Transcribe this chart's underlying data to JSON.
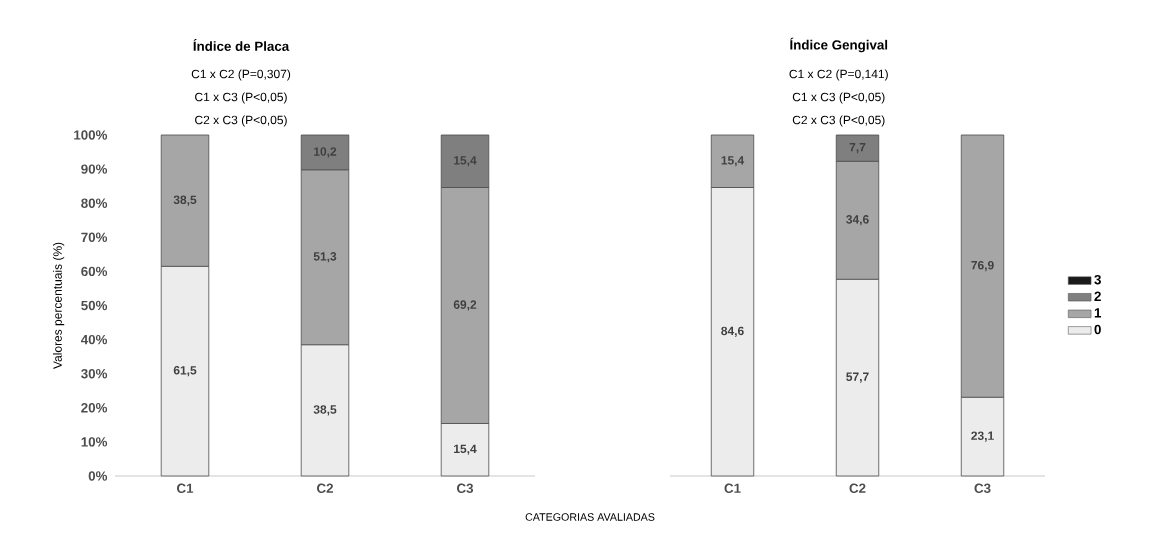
{
  "chart_data": [
    {
      "type": "bar",
      "stacked": true,
      "title": "Índice de Placa",
      "annotations": [
        "C1 x C2 (P=0,307)",
        "C1 x C3 (P<0,05)",
        "C2 x C3 (P<0,05)"
      ],
      "ylabel": "Valores percentuais (%)",
      "xlabel": "CATEGORIAS AVALIADAS",
      "categories": [
        "C1",
        "C2",
        "C3"
      ],
      "ylim": [
        0,
        100
      ],
      "yticks": [
        {
          "value": 0,
          "label": "0%"
        },
        {
          "value": 10,
          "label": "10%"
        },
        {
          "value": 20,
          "label": "20%"
        },
        {
          "value": 30,
          "label": "30%"
        },
        {
          "value": 40,
          "label": "40%"
        },
        {
          "value": 50,
          "label": "50%"
        },
        {
          "value": 60,
          "label": "60%"
        },
        {
          "value": 70,
          "label": "70%"
        },
        {
          "value": 80,
          "label": "80%"
        },
        {
          "value": 90,
          "label": "90%"
        },
        {
          "value": 100,
          "label": "100%"
        }
      ],
      "series": [
        {
          "color": "#ececec",
          "values": [
            61.5,
            38.5,
            15.4
          ],
          "value_labels": [
            "61,5",
            "38,5",
            "15,4"
          ]
        },
        {
          "color": "#a6a6a6",
          "values": [
            38.5,
            51.3,
            69.2
          ],
          "value_labels": [
            "38,5",
            "51,3",
            "69,2"
          ]
        },
        {
          "color": "#7f7f7f",
          "values": [
            null,
            10.2,
            15.4
          ],
          "value_labels": [
            null,
            "10,2",
            "15,4"
          ]
        }
      ]
    },
    {
      "type": "bar",
      "stacked": true,
      "title": "Índice Gengival",
      "annotations": [
        "C1 x C2 (P=0,141)",
        "C1 x C3 (P<0,05)",
        "C2 x C3 (P<0,05)"
      ],
      "categories": [
        "C1",
        "C2",
        "C3"
      ],
      "ylim": [
        0,
        100
      ],
      "tick_labels": "x",
      "legend": "right",
      "series": [
        {
          "name": "0",
          "color": "#ececec",
          "values": [
            84.6,
            57.7,
            23.1
          ],
          "value_labels": [
            "84,6",
            "57,7",
            "23,1"
          ]
        },
        {
          "name": "1",
          "color": "#a6a6a6",
          "values": [
            15.4,
            34.6,
            76.9
          ],
          "value_labels": [
            "15,4",
            "34,6",
            "76,9"
          ]
        },
        {
          "name": "2",
          "color": "#7f7f7f",
          "values": [
            null,
            7.7,
            null
          ],
          "value_labels": [
            null,
            "7,7",
            null
          ]
        },
        {
          "name": "3",
          "color": "#1a1a1a",
          "values": [
            null,
            null,
            null
          ]
        }
      ]
    }
  ]
}
